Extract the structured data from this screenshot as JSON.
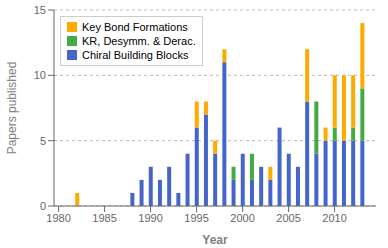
{
  "chart_data": {
    "type": "bar",
    "stacked": true,
    "x": [
      1982,
      1988,
      1989,
      1990,
      1991,
      1992,
      1993,
      1994,
      1995,
      1996,
      1997,
      1998,
      1999,
      2000,
      2001,
      2002,
      2003,
      2004,
      2005,
      2006,
      2007,
      2008,
      2009,
      2010,
      2011,
      2012,
      2013
    ],
    "series": [
      {
        "name": "Chiral Building Blocks",
        "color": "#4466cc",
        "values": [
          0,
          1,
          2,
          3,
          2,
          3,
          1,
          4,
          6,
          7,
          4,
          11,
          2,
          4,
          2,
          3,
          2,
          6,
          4,
          3,
          8,
          4,
          5,
          5,
          5,
          5,
          5
        ]
      },
      {
        "name": "KR, Desymm. & Derac.",
        "color": "#44aa44",
        "values": [
          0,
          0,
          0,
          0,
          0,
          0,
          0,
          0,
          0,
          0,
          0,
          0,
          1,
          0,
          2,
          0,
          0,
          0,
          0,
          0,
          0,
          4,
          0,
          1,
          0,
          1,
          4
        ]
      },
      {
        "name": "Key Bond Formations",
        "color": "#ffaa00",
        "values": [
          1,
          0,
          0,
          0,
          0,
          0,
          0,
          0,
          2,
          1,
          1,
          1,
          0,
          0,
          0,
          0,
          1,
          0,
          0,
          0,
          4,
          0,
          1,
          4,
          5,
          4,
          5
        ]
      }
    ],
    "xlim": [
      1979.5,
      2014.5
    ],
    "xticks": [
      1980,
      1985,
      1990,
      1995,
      2000,
      2005,
      2010
    ],
    "ylim": [
      0,
      15
    ],
    "yticks": [
      0,
      5,
      10,
      15
    ],
    "grid": true,
    "legend": "upper left",
    "xlabel": "Year",
    "ylabel": "Papers published"
  }
}
